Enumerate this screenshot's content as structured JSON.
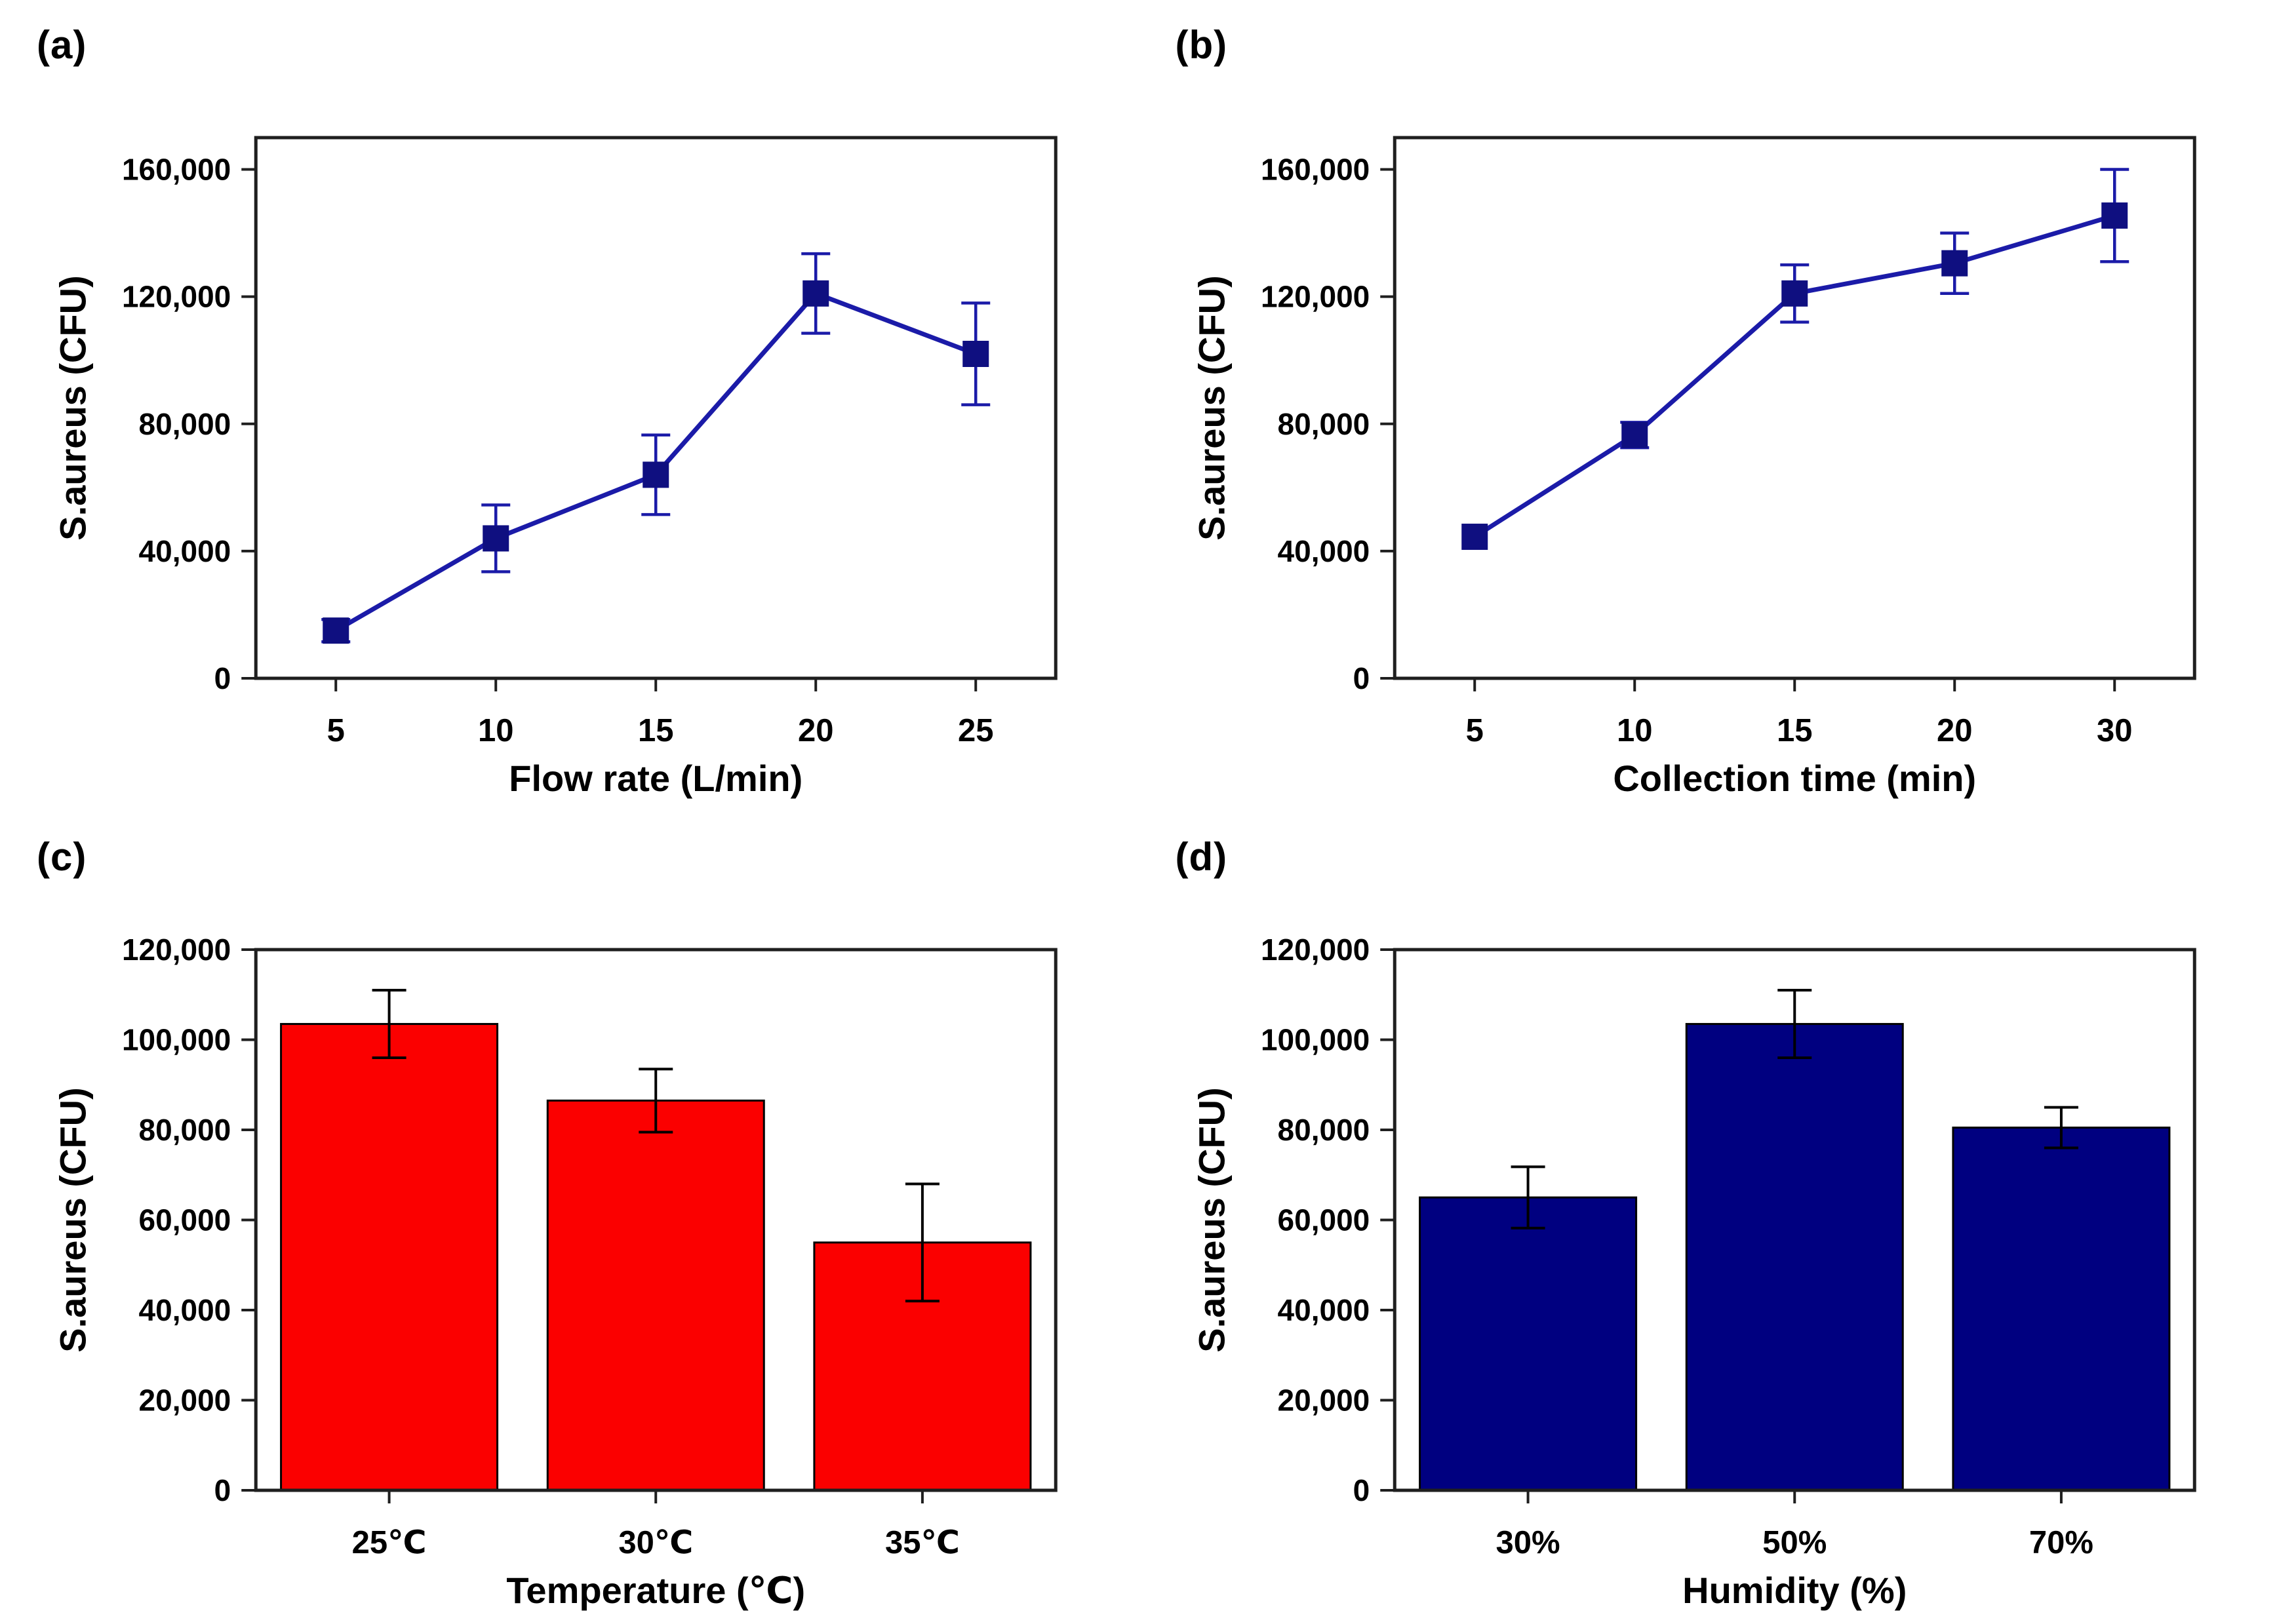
{
  "page": {
    "background_color": "#ffffff",
    "figure_type": "four-panel scientific figure"
  },
  "chart_data": [
    {
      "panel_label": "(a)",
      "type": "line",
      "categories": [
        "5",
        "10",
        "15",
        "20",
        "25"
      ],
      "values": [
        15000,
        44000,
        64000,
        121000,
        102000
      ],
      "errors": [
        3500,
        10500,
        12500,
        12500,
        16000
      ],
      "title": "",
      "xlabel": "Flow rate (L/min)",
      "ylabel": "S.aureus (CFU)",
      "ylim": [
        0,
        170000
      ],
      "ytick_step": 40000,
      "ytick_max": 160000,
      "grid": "off",
      "legend": "none",
      "line_color": "#1b1ba8",
      "marker_color": "#0f0f80",
      "marker_shape": "square",
      "error_color": "#1b1ba8",
      "frame_color": "#1f1f1f",
      "text_color": "#000000"
    },
    {
      "panel_label": "(b)",
      "type": "line",
      "categories": [
        "5",
        "10",
        "15",
        "20",
        "30"
      ],
      "values": [
        44500,
        76500,
        121000,
        130500,
        145500
      ],
      "errors": [
        0,
        4000,
        9000,
        9500,
        14500
      ],
      "title": "",
      "xlabel": "Collection time (min)",
      "ylabel": "S.aureus (CFU)",
      "ylim": [
        0,
        170000
      ],
      "ytick_step": 40000,
      "ytick_max": 160000,
      "grid": "off",
      "legend": "none",
      "line_color": "#1b1ba8",
      "marker_color": "#0f0f80",
      "marker_shape": "square",
      "error_color": "#1b1ba8",
      "frame_color": "#1f1f1f",
      "text_color": "#000000"
    },
    {
      "panel_label": "(c)",
      "type": "bar",
      "categories": [
        "25℃",
        "30℃",
        "35℃"
      ],
      "values": [
        103500,
        86500,
        55000
      ],
      "errors": [
        7500,
        7000,
        13000
      ],
      "title": "",
      "xlabel": "Temperature (℃)",
      "ylabel": "S.aureus (CFU)",
      "ylim": [
        0,
        120000
      ],
      "ytick_step": 20000,
      "ytick_max": 120000,
      "grid": "off",
      "legend": "none",
      "bar_color": "#fb0000",
      "bar_edge_color": "#000000",
      "error_color": "#000000",
      "frame_color": "#1f1f1f",
      "text_color": "#000000"
    },
    {
      "panel_label": "(d)",
      "type": "bar",
      "categories": [
        "30%",
        "50%",
        "70%"
      ],
      "values": [
        65000,
        103500,
        80500
      ],
      "errors": [
        6800,
        7500,
        4500
      ],
      "title": "",
      "xlabel": "Humidity (%)",
      "ylabel": "S.aureus (CFU)",
      "ylim": [
        0,
        120000
      ],
      "ytick_step": 20000,
      "ytick_max": 120000,
      "grid": "off",
      "legend": "none",
      "bar_color": "#000080",
      "bar_edge_color": "#000000",
      "error_color": "#000000",
      "frame_color": "#1f1f1f",
      "text_color": "#000000"
    }
  ]
}
